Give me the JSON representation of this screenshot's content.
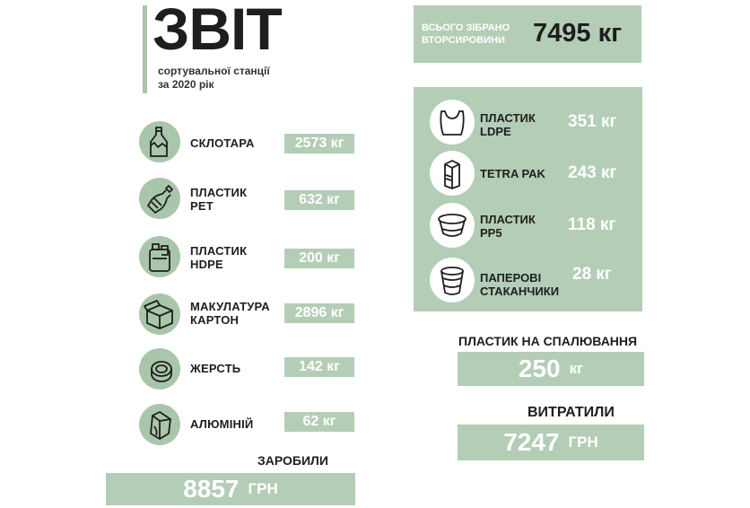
{
  "header": {
    "title": "ЗВІТ",
    "subtitle_line1": "сортувальної станції",
    "subtitle_line2": "за 2020 рік"
  },
  "total": {
    "label_line1": "ВСЬОГО ЗІБРАНО",
    "label_line2": "ВТОРСИРОВИНИ",
    "value": "7495 кг"
  },
  "left_items": [
    {
      "label1": "СКЛОТАРА",
      "label2": "",
      "value": "2573 кг",
      "icon": "glass-bottle-icon"
    },
    {
      "label1": "ПЛАСТИК",
      "label2": "PET",
      "value": "632 кг",
      "icon": "pet-bottle-icon"
    },
    {
      "label1": "ПЛАСТИК",
      "label2": "HDPE",
      "value": "200 кг",
      "icon": "hdpe-canister-icon"
    },
    {
      "label1": "МАКУЛАТУРА",
      "label2": "КАРТОН",
      "value": "2896 кг",
      "icon": "cardboard-box-icon"
    },
    {
      "label1": "ЖЕРСТЬ",
      "label2": "",
      "value": "142 кг",
      "icon": "tin-can-icon"
    },
    {
      "label1": "АЛЮМІНІЙ",
      "label2": "",
      "value": "62 кг",
      "icon": "aluminum-can-icon"
    }
  ],
  "right_items": [
    {
      "label1": "ПЛАСТИК",
      "label2": "LDPE",
      "value": "351 кг",
      "icon": "plastic-bag-icon"
    },
    {
      "label1": "TETRA PAK",
      "label2": "",
      "value": "243 кг",
      "icon": "tetra-pak-icon"
    },
    {
      "label1": "ПЛАСТИК",
      "label2": "PP5",
      "value": "118 кг",
      "icon": "pp5-container-icon"
    },
    {
      "label1": "ПАПЕРОВІ",
      "label2": "СТАКАНЧИКИ",
      "value": "28 кг",
      "icon": "paper-cup-icon"
    }
  ],
  "burn": {
    "heading": "ПЛАСТИК НА СПАЛЮВАННЯ",
    "value": "250",
    "unit": "кг"
  },
  "expenses": {
    "heading": "ВИТРАТИЛИ",
    "value": "7247",
    "unit": "ГРН"
  },
  "earned": {
    "heading": "ЗАРОБИЛИ",
    "value": "8857",
    "unit": "ГРН"
  },
  "colors": {
    "accent_green": "#b4cdb6",
    "icon_green": "#a9c6aa",
    "text_dark": "#1e1e1e"
  }
}
